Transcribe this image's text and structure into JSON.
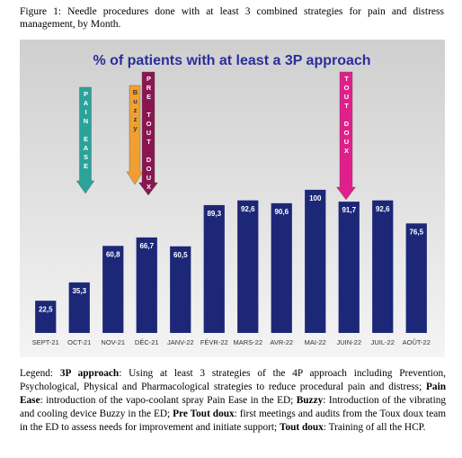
{
  "caption": "Figure 1: Needle procedures done with at least 3 combined strategies for pain and distress management, by Month.",
  "chart_data": {
    "type": "bar",
    "title": "% of patients with at least a 3P approach",
    "categories": [
      "SEPT-21",
      "OCT-21",
      "NOV-21",
      "DÉC-21",
      "JANV-22",
      "FÉVR-22",
      "MARS-22",
      "AVR-22",
      "MAI-22",
      "JUIN-22",
      "JUIL-22",
      "AOÛT-22"
    ],
    "values": [
      22.5,
      35.3,
      60.8,
      66.7,
      60.5,
      89.3,
      92.6,
      90.6,
      100,
      91.7,
      92.6,
      76.5
    ],
    "value_labels": [
      "22,5",
      "35,3",
      "60,8",
      "66,7",
      "60,5",
      "89,3",
      "92,6",
      "90,6",
      "100",
      "91,7",
      "92,6",
      "76,5"
    ],
    "color": "#1c2777",
    "ylim": [
      0,
      110
    ],
    "annotations": [
      {
        "text": "PAIN EASE",
        "color": "#2aa39a"
      },
      {
        "text": "Buzzy",
        "color": "#f0a030"
      },
      {
        "text": "PRE TOUT DOUX",
        "color": "#8a1650"
      },
      {
        "text": "TOUT DOUX",
        "color": "#e0208a"
      }
    ]
  },
  "legend": {
    "prefix": "Legend: ",
    "items": [
      {
        "term": "3P approach",
        "text": ": Using at least 3 strategies of the 4P approach including Prevention, Psychological, Physical and Pharmacological strategies to reduce procedural pain and distress; "
      },
      {
        "term": "Pain Ease",
        "text": ": introduction of the vapo-coolant spray Pain Ease in the ED; "
      },
      {
        "term": "Buzzy",
        "text": ": Introduction of the vibrating and cooling device Buzzy in the ED; "
      },
      {
        "term": "Pre Tout doux",
        "text": ": first meetings and audits from the Toux doux team in the ED to assess needs for improvement and initiate support; "
      },
      {
        "term": "Tout doux",
        "text": ": Training of all the HCP."
      }
    ]
  }
}
